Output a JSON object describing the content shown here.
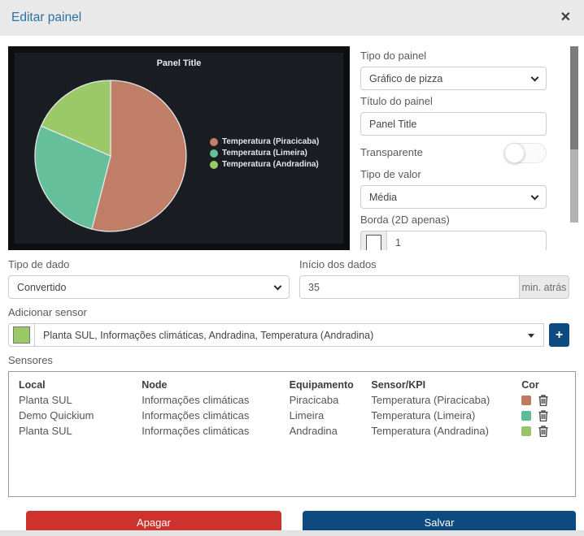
{
  "modal": {
    "title": "Editar painel",
    "close_icon": "✕"
  },
  "chart_data": {
    "type": "pie",
    "title": "Panel Title",
    "labels": [
      "Temperatura (Piracicaba)",
      "Temperatura (Limeira)",
      "Temperatura (Andradina)"
    ],
    "values": [
      54,
      27.5,
      18.5
    ],
    "colors": [
      "#c07e68",
      "#66bf9b",
      "#9cc968"
    ],
    "legend_position": "right",
    "background": "#1a1d21"
  },
  "form": {
    "tipo_painel": {
      "label": "Tipo do painel",
      "value": "Gráfico de pizza"
    },
    "titulo": {
      "label": "Título do painel",
      "value": "Panel Title"
    },
    "transparente": {
      "label": "Transparente",
      "value": "off"
    },
    "tipo_valor": {
      "label": "Tipo de valor",
      "value": "Média"
    },
    "borda": {
      "label": "Borda (2D apenas)",
      "value": "1",
      "color": "#ffffff"
    },
    "tipo_dado": {
      "label": "Tipo de dado",
      "value": "Convertido"
    },
    "inicio_dados": {
      "label": "Início dos dados",
      "value": "35",
      "suffix": "min. atrás"
    },
    "adicionar_sensor": {
      "label": "Adicionar sensor",
      "value": "Planta SUL, Informações climáticas, Andradina, Temperatura (Andradina)",
      "swatch_color": "#9cc968",
      "add_label": "+"
    }
  },
  "sensores": {
    "label": "Sensores",
    "columns": [
      "Local",
      "Node",
      "Equipamento",
      "Sensor/KPI",
      "Cor"
    ],
    "rows": [
      {
        "local": "Planta SUL",
        "node": "Informações climáticas",
        "equipamento": "Piracicaba",
        "sensor": "Temperatura (Piracicaba)",
        "cor": "#c0785f"
      },
      {
        "local": "Demo Quickium",
        "node": "Informações climáticas",
        "equipamento": "Limeira",
        "sensor": "Temperatura (Limeira)",
        "cor": "#5dbd97"
      },
      {
        "local": "Planta SUL",
        "node": "Informações climáticas",
        "equipamento": "Andradina",
        "sensor": "Temperatura (Andradina)",
        "cor": "#9ac367"
      }
    ]
  },
  "buttons": {
    "apagar": "Apagar",
    "salvar": "Salvar"
  },
  "colors": {
    "danger": "#ce322d",
    "primary": "#0d4a7f",
    "accent_blue": "#2a71a5"
  }
}
